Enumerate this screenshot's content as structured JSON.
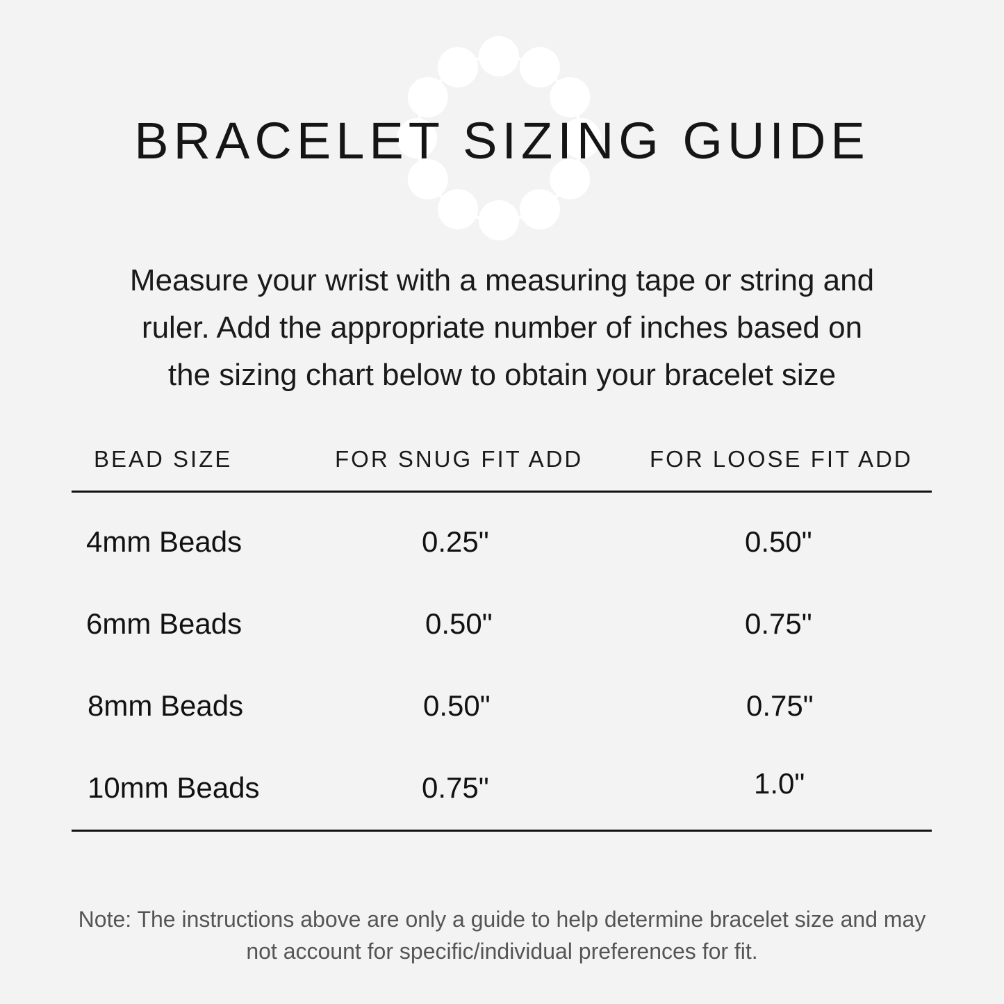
{
  "title": "BRACELET SIZING GUIDE",
  "decoration": {
    "icon": "bead-bracelet-icon",
    "color": "#ffffff",
    "bead_count": 12
  },
  "background_color": "#f3f3f3",
  "intro_lines": [
    "Measure your wrist with a measuring tape or string and",
    "ruler.  Add the appropriate number of inches based on",
    "the sizing chart below to obtain your bracelet size"
  ],
  "table": {
    "headers": [
      "BEAD SIZE",
      "FOR SNUG FIT ADD",
      "FOR LOOSE FIT ADD"
    ],
    "rows": [
      [
        "4mm Beads",
        "0.25\"",
        "0.50\""
      ],
      [
        "6mm Beads",
        "0.50\"",
        "0.75\""
      ],
      [
        "8mm Beads",
        "0.50\"",
        "0.75\""
      ],
      [
        "10mm Beads",
        "0.75\"",
        "1.0\""
      ]
    ]
  },
  "note_lines": [
    "Note: The instructions above are only a guide to help determine bracelet size and may",
    "not account for specific/individual preferences for fit."
  ]
}
